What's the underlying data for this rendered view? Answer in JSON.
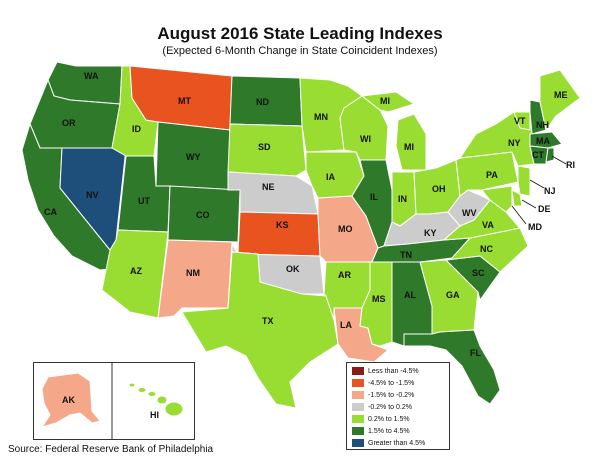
{
  "title": "August 2016 State Leading Indexes",
  "subtitle": "(Expected 6-Month Change in State Coincident Indexes)",
  "source": "Source: Federal Reserve Bank of Philadelphia",
  "colors": {
    "lt_-4.5": "#8b1a1a",
    "-4.5_-1.5": "#e8531f",
    "-1.5_-0.2": "#f5a889",
    "-0.2_0.2": "#cccccc",
    "0.2_1.5": "#99dd33",
    "1.5_4.5": "#2f7a2a",
    "gt_4.5": "#1d4f7a"
  },
  "legend": [
    {
      "label": "Less than -4.5%",
      "color": "#8b1a1a"
    },
    {
      "label": "-4.5% to -1.5%",
      "color": "#e8531f"
    },
    {
      "label": "-1.5% to -0.2%",
      "color": "#f5a889"
    },
    {
      "label": "-0.2% to 0.2%",
      "color": "#cccccc"
    },
    {
      "label": "0.2% to 1.5%",
      "color": "#99dd33"
    },
    {
      "label": "1.5% to 4.5%",
      "color": "#2f7a2a"
    },
    {
      "label": "Greater than 4.5%",
      "color": "#1d4f7a"
    }
  ],
  "states": {
    "WA": "1.5_4.5",
    "OR": "1.5_4.5",
    "CA": "1.5_4.5",
    "NV": "gt_4.5",
    "ID": "0.2_1.5",
    "MT": "-4.5_-1.5",
    "WY": "1.5_4.5",
    "UT": "1.5_4.5",
    "CO": "1.5_4.5",
    "AZ": "0.2_1.5",
    "NM": "-1.5_-0.2",
    "ND": "1.5_4.5",
    "SD": "0.2_1.5",
    "NE": "-0.2_0.2",
    "KS": "-4.5_-1.5",
    "OK": "-0.2_0.2",
    "TX": "0.2_1.5",
    "MN": "0.2_1.5",
    "IA": "0.2_1.5",
    "MO": "-1.5_-0.2",
    "AR": "0.2_1.5",
    "LA": "-1.5_-0.2",
    "WI": "0.2_1.5",
    "IL": "1.5_4.5",
    "MI": "0.2_1.5",
    "IN": "0.2_1.5",
    "OH": "0.2_1.5",
    "KY": "-0.2_0.2",
    "TN": "1.5_4.5",
    "MS": "0.2_1.5",
    "AL": "1.5_4.5",
    "GA": "0.2_1.5",
    "FL": "1.5_4.5",
    "SC": "1.5_4.5",
    "NC": "0.2_1.5",
    "VA": "0.2_1.5",
    "WV": "-0.2_0.2",
    "PA": "0.2_1.5",
    "NY": "0.2_1.5",
    "VT": "0.2_1.5",
    "NH": "1.5_4.5",
    "ME": "0.2_1.5",
    "MA": "1.5_4.5",
    "CT": "1.5_4.5",
    "RI": "1.5_4.5",
    "NJ": "0.2_1.5",
    "DE": "0.2_1.5",
    "MD": "0.2_1.5",
    "AK": "-1.5_-0.2",
    "HI": "0.2_1.5"
  },
  "labels": {
    "WA": "WA",
    "OR": "OR",
    "CA": "CA",
    "NV": "NV",
    "ID": "ID",
    "MT": "MT",
    "WY": "WY",
    "UT": "UT",
    "CO": "CO",
    "AZ": "AZ",
    "NM": "NM",
    "ND": "ND",
    "SD": "SD",
    "NE": "NE",
    "KS": "KS",
    "OK": "OK",
    "TX": "TX",
    "MN": "MN",
    "IA": "IA",
    "MO": "MO",
    "AR": "AR",
    "LA": "LA",
    "WI": "WI",
    "IL": "IL",
    "MI": "MI",
    "MI2": "MI",
    "IN": "IN",
    "OH": "OH",
    "KY": "KY",
    "TN": "TN",
    "MS": "MS",
    "AL": "AL",
    "GA": "GA",
    "FL": "FL",
    "SC": "SC",
    "NC": "NC",
    "VA": "VA",
    "WV": "WV",
    "PA": "PA",
    "NY": "NY",
    "VT": "VT",
    "NH": "NH",
    "ME": "ME",
    "MA": "MA",
    "CT": "CT",
    "RI": "RI",
    "NJ": "NJ",
    "DE": "DE",
    "MD": "MD",
    "AK": "AK",
    "HI": "HI"
  }
}
